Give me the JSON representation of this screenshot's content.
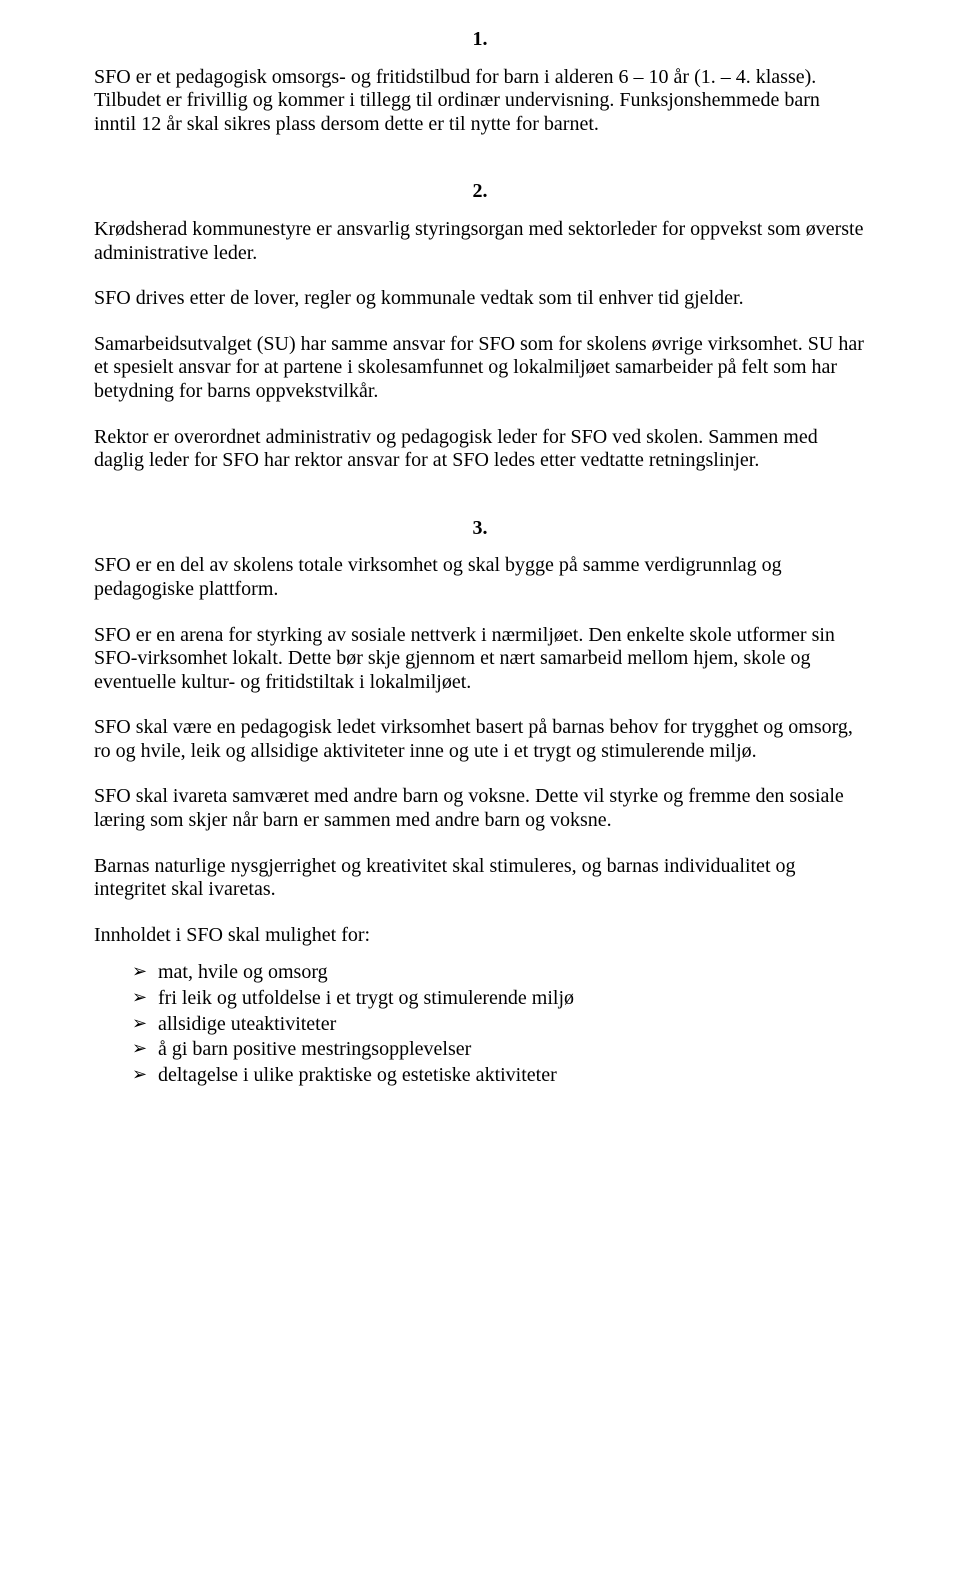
{
  "sec1": {
    "num": "1.",
    "p1": "SFO er et pedagogisk omsorgs- og fritidstilbud for barn i alderen 6 – 10 år (1. – 4. klasse).  Tilbudet er frivillig og kommer i tillegg til ordinær undervisning. Funksjonshemmede barn inntil 12 år skal sikres plass dersom dette er til nytte for barnet."
  },
  "sec2": {
    "num": "2.",
    "p1": "Krødsherad kommunestyre er ansvarlig styringsorgan med sektorleder for oppvekst som øverste administrative leder.",
    "p2": "SFO drives etter de lover, regler og kommunale vedtak som til enhver tid gjelder.",
    "p3": "Samarbeidsutvalget (SU) har samme ansvar for SFO som for skolens øvrige virksomhet.  SU har et spesielt ansvar for at partene i skolesamfunnet og lokalmiljøet samarbeider på felt som har betydning for barns oppvekstvilkår.",
    "p4": "Rektor er overordnet administrativ og pedagogisk leder for SFO ved skolen.  Sammen med daglig leder for SFO har rektor ansvar for at SFO ledes etter vedtatte retningslinjer."
  },
  "sec3": {
    "num": "3.",
    "p1": "SFO er en del av skolens totale virksomhet og skal bygge på samme verdigrunnlag og pedagogiske plattform.",
    "p2": "SFO er en arena for styrking av sosiale nettverk i nærmiljøet.  Den enkelte skole utformer sin SFO-virksomhet lokalt.  Dette bør skje gjennom et nært samarbeid mellom hjem, skole og eventuelle kultur- og fritidstiltak i lokalmiljøet.",
    "p3": "SFO skal være en pedagogisk ledet virksomhet basert på barnas behov for trygghet og omsorg, ro og hvile, leik og allsidige aktiviteter inne og ute i et trygt og stimulerende miljø.",
    "p4": "SFO skal ivareta samværet med andre barn og voksne.  Dette vil styrke og fremme den sosiale læring som skjer når barn er sammen med andre barn og voksne.",
    "p5": "Barnas naturlige nysgjerrighet og kreativitet skal stimuleres, og barnas individualitet og integritet skal ivaretas.",
    "p6": "Innholdet i SFO skal mulighet for:",
    "bullets": {
      "b1": "mat, hvile og omsorg",
      "b2": "fri leik og utfoldelse i et trygt og stimulerende miljø",
      "b3": "allsidige uteaktiviteter",
      "b4": "å gi barn positive mestringsopplevelser",
      "b5": "deltagelse i ulike praktiske og estetiske aktiviteter"
    }
  }
}
